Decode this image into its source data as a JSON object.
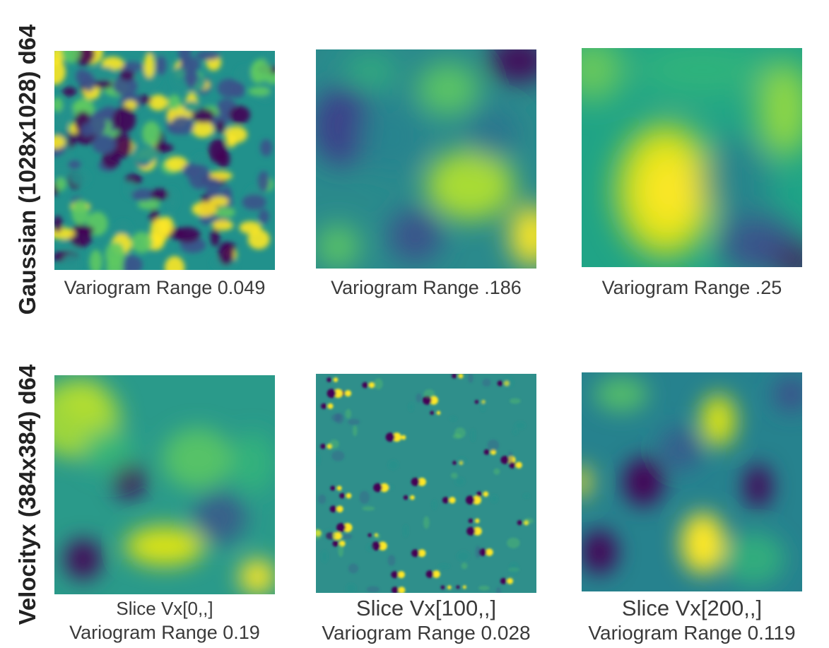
{
  "rows": [
    {
      "label": "Gaussian (1028x1028) d64"
    },
    {
      "label": "Velocityx (384x384) d64"
    }
  ],
  "panels": [
    {
      "caption": "Variogram Range 0.049"
    },
    {
      "caption": "Variogram Range .186"
    },
    {
      "caption": "Variogram Range .25"
    },
    {
      "slice": "Slice Vx[0,,]",
      "caption": "Variogram Range 0.19"
    },
    {
      "slice": "Slice Vx[100,,]",
      "caption": "Variogram Range 0.028"
    },
    {
      "slice": "Slice Vx[200,,]",
      "caption": "Variogram Range 0.119"
    }
  ],
  "colormap": {
    "name": "viridis",
    "low": "#440154",
    "mid": "#21918c",
    "high": "#fde725"
  }
}
